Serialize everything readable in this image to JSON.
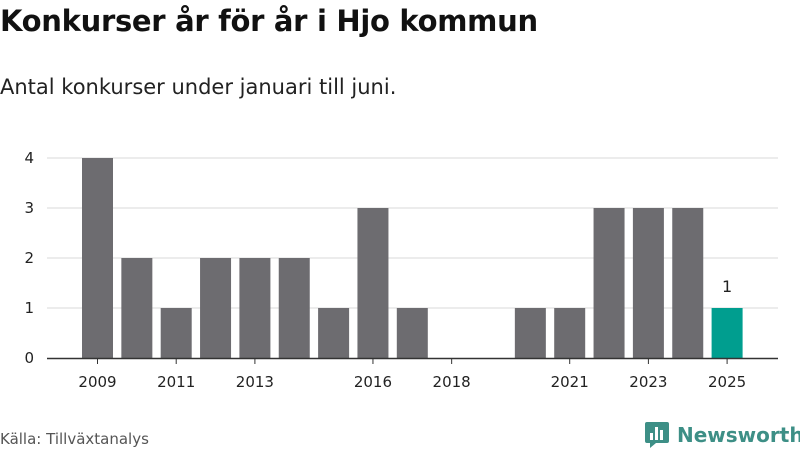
{
  "title": "Konkurser år för år i Hjo kommun",
  "subtitle": "Antal konkurser under januari till juni.",
  "source": "Källa: Tillväxtanalys",
  "brand": {
    "name": "Newsworthy",
    "color": "#3d8f86",
    "icon": "bar-chart-logo-icon"
  },
  "colors": {
    "bar": "#6d6c70",
    "highlight": "#009e8f",
    "grid": "#d9d9d9",
    "axis": "#333333"
  },
  "chart_data": {
    "type": "bar",
    "title": "Konkurser år för år i Hjo kommun",
    "subtitle": "Antal konkurser under januari till juni.",
    "xlabel": "",
    "ylabel": "",
    "categories": [
      "2009",
      "2010",
      "2011",
      "2012",
      "2013",
      "2014",
      "2015",
      "2016",
      "2017",
      "2018",
      "2019",
      "2020",
      "2021",
      "2022",
      "2023",
      "2024",
      "2025"
    ],
    "values": [
      4,
      2,
      1,
      2,
      2,
      2,
      1,
      3,
      1,
      0,
      0,
      1,
      1,
      3,
      3,
      3,
      1
    ],
    "x_tick_labels": [
      "2009",
      "2011",
      "2013",
      "2016",
      "2018",
      "2021",
      "2023",
      "2025"
    ],
    "y_ticks": [
      0,
      1,
      2,
      3,
      4
    ],
    "ylim": [
      0,
      4
    ],
    "grid": true,
    "highlight_category": "2025",
    "data_labels": [
      {
        "category": "2025",
        "text": "1"
      }
    ]
  }
}
